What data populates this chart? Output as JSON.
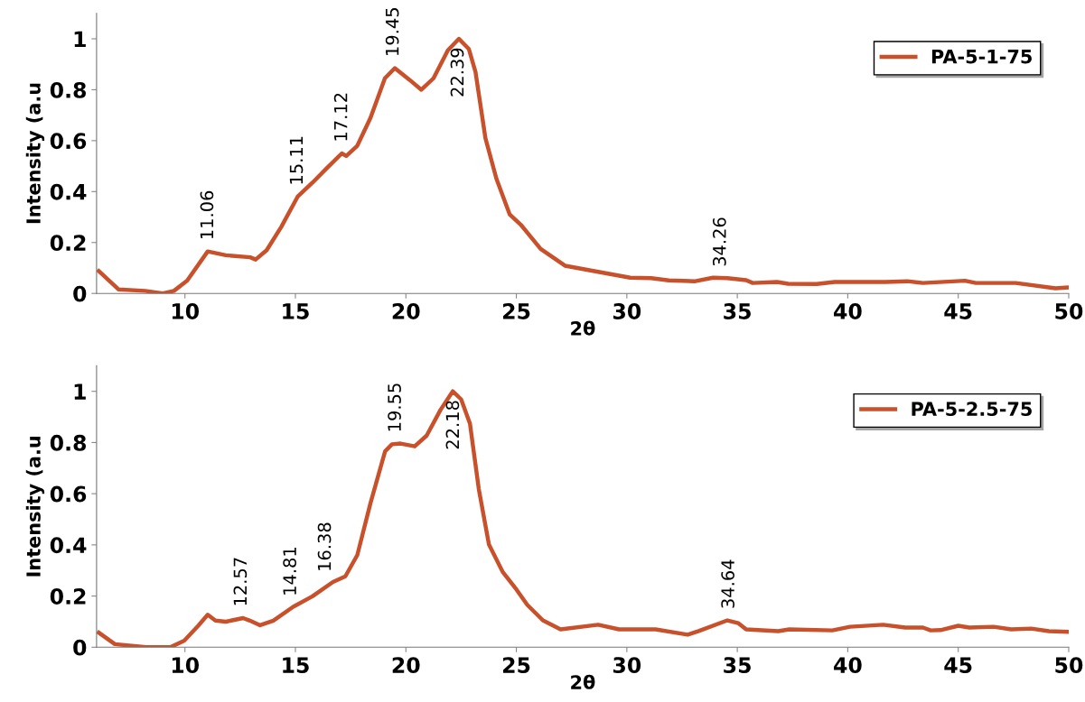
{
  "chart_data": [
    {
      "type": "line",
      "xlabel": "2θ",
      "ylabel": "Intensity (a.u",
      "xlim": [
        6,
        50
      ],
      "ylim": [
        0,
        1.1
      ],
      "xticks": [
        10,
        15,
        20,
        25,
        30,
        35,
        40,
        45,
        50
      ],
      "yticks": [
        0,
        0.2,
        0.4,
        0.6,
        0.8,
        1
      ],
      "legend": "top right",
      "grid": false,
      "series": [
        {
          "name": "PA-5-1-75",
          "color": "#c8502a",
          "x": [
            6.1,
            6.99,
            8.2,
            9.0,
            9.5,
            10.1,
            11.03,
            11.85,
            12.95,
            13.2,
            13.7,
            14.35,
            15.1,
            15.77,
            16.4,
            17.1,
            17.3,
            17.8,
            18.4,
            19.05,
            19.5,
            20.15,
            20.7,
            21.25,
            21.9,
            22.4,
            22.85,
            23.15,
            23.6,
            24.1,
            24.7,
            25.2,
            26.1,
            27.2,
            28.7,
            30.15,
            31.1,
            31.9,
            33.1,
            33.9,
            34.55,
            35.4,
            35.7,
            36.8,
            37.3,
            38.6,
            39.4,
            41.7,
            42.7,
            43.4,
            45.3,
            45.8,
            47.6,
            49.4,
            50
          ],
          "values": [
            0.088,
            0.016,
            0.01,
            0.0,
            0.01,
            0.05,
            0.165,
            0.15,
            0.142,
            0.133,
            0.17,
            0.26,
            0.38,
            0.435,
            0.49,
            0.55,
            0.54,
            0.58,
            0.69,
            0.845,
            0.885,
            0.84,
            0.8,
            0.845,
            0.955,
            1.0,
            0.96,
            0.87,
            0.61,
            0.45,
            0.31,
            0.27,
            0.175,
            0.109,
            0.085,
            0.062,
            0.06,
            0.051,
            0.048,
            0.062,
            0.06,
            0.052,
            0.041,
            0.045,
            0.038,
            0.037,
            0.045,
            0.045,
            0.048,
            0.041,
            0.05,
            0.041,
            0.041,
            0.02,
            0.024
          ]
        }
      ],
      "annotations": [
        {
          "text": "11.06",
          "x": 11.06,
          "y": 0.165
        },
        {
          "text": "15.11",
          "x": 15.11,
          "y": 0.38
        },
        {
          "text": "17.12",
          "x": 17.12,
          "y": 0.55
        },
        {
          "text": "19.45",
          "x": 19.45,
          "y": 0.885
        },
        {
          "text": "22.39",
          "x": 22.39,
          "y": 1.0
        },
        {
          "text": "34.26",
          "x": 34.26,
          "y": 0.06
        }
      ]
    },
    {
      "type": "line",
      "xlabel": "2θ",
      "ylabel": "Intensity (a.u",
      "xlim": [
        6,
        50
      ],
      "ylim": [
        0,
        1.1
      ],
      "xticks": [
        10,
        15,
        20,
        25,
        30,
        35,
        40,
        45,
        50
      ],
      "yticks": [
        0,
        0.2,
        0.4,
        0.6,
        0.8,
        1
      ],
      "legend": "top right",
      "grid": false,
      "series": [
        {
          "name": "PA-5-2.5-75",
          "color": "#c8502a",
          "x": [
            6.1,
            6.83,
            8.24,
            9.34,
            9.97,
            10.6,
            11.03,
            11.38,
            11.85,
            12.63,
            12.94,
            13.4,
            14.0,
            14.9,
            15.77,
            16.7,
            17.26,
            17.8,
            18.4,
            19.06,
            19.37,
            19.76,
            20.4,
            20.94,
            21.57,
            22.12,
            22.5,
            22.9,
            23.3,
            23.76,
            24.39,
            25.0,
            25.5,
            26.2,
            27.0,
            28.7,
            29.65,
            31.3,
            32.75,
            33.25,
            34.55,
            35.05,
            35.4,
            36.85,
            37.35,
            39.3,
            40.1,
            41.6,
            42.6,
            43.4,
            43.75,
            44.2,
            45.0,
            45.5,
            46.6,
            47.4,
            48.3,
            49.1,
            50
          ],
          "values": [
            0.057,
            0.012,
            0.0,
            0.0,
            0.026,
            0.084,
            0.127,
            0.104,
            0.1,
            0.114,
            0.104,
            0.086,
            0.104,
            0.158,
            0.199,
            0.255,
            0.277,
            0.36,
            0.564,
            0.766,
            0.793,
            0.796,
            0.785,
            0.827,
            0.928,
            1.0,
            0.969,
            0.874,
            0.618,
            0.401,
            0.293,
            0.226,
            0.165,
            0.105,
            0.07,
            0.088,
            0.07,
            0.07,
            0.049,
            0.063,
            0.105,
            0.094,
            0.07,
            0.063,
            0.07,
            0.066,
            0.08,
            0.088,
            0.077,
            0.077,
            0.066,
            0.067,
            0.084,
            0.077,
            0.08,
            0.07,
            0.073,
            0.063,
            0.06
          ]
        }
      ],
      "annotations": [
        {
          "text": "12.57",
          "x": 12.57,
          "y": 0.114
        },
        {
          "text": "14.81",
          "x": 14.81,
          "y": 0.155
        },
        {
          "text": "16.38",
          "x": 16.38,
          "y": 0.25
        },
        {
          "text": "19.55",
          "x": 19.55,
          "y": 0.795
        },
        {
          "text": "22.18",
          "x": 22.18,
          "y": 1.0
        },
        {
          "text": "34.64",
          "x": 34.64,
          "y": 0.105
        }
      ]
    }
  ]
}
